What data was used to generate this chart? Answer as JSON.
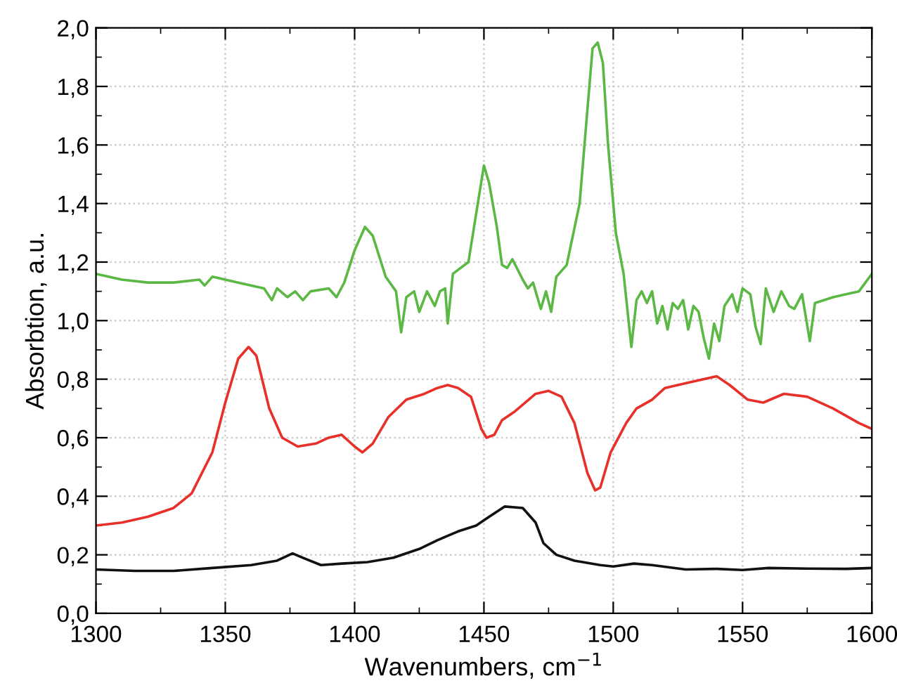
{
  "chart_data": {
    "type": "line",
    "xlabel": "Wavenumbers, cm$^{−1}$",
    "ylabel": "Absorbtion, a.u.",
    "xlim": [
      1300,
      1600
    ],
    "xticks": [
      1300,
      1350,
      1400,
      1450,
      1500,
      1550,
      1600
    ],
    "ylim": [
      0,
      2.0
    ],
    "yticks": [
      {
        "value": 0,
        "label": "0,0"
      },
      {
        "value": 0.2,
        "label": "0,2"
      },
      {
        "value": 0.4,
        "label": "0,4"
      },
      {
        "value": 0.6,
        "label": "0,6"
      },
      {
        "value": 0.8,
        "label": "0,8"
      },
      {
        "value": 1.0,
        "label": "1,0"
      },
      {
        "value": 1.2,
        "label": "1,2"
      },
      {
        "value": 1.4,
        "label": "1,4"
      },
      {
        "value": 1.6,
        "label": "1,6"
      },
      {
        "value": 1.8,
        "label": "1,8"
      },
      {
        "value": 2.0,
        "label": "2,0"
      }
    ],
    "grid": true,
    "marker": "none",
    "line_style": "solid",
    "series": [
      {
        "color": "#5cb845",
        "x": [
          1300,
          1310,
          1320,
          1330,
          1340,
          1342,
          1345,
          1355,
          1365,
          1368,
          1370,
          1374,
          1377,
          1380,
          1383,
          1390,
          1393,
          1396,
          1400,
          1404,
          1407,
          1412,
          1416,
          1418,
          1420,
          1423,
          1425,
          1428,
          1431,
          1433,
          1435,
          1436,
          1438,
          1444,
          1448,
          1450,
          1452,
          1455,
          1457,
          1459,
          1461,
          1465,
          1467,
          1469,
          1472,
          1474,
          1476,
          1478,
          1482,
          1487,
          1490,
          1492,
          1494,
          1496,
          1498,
          1501,
          1504,
          1507,
          1509,
          1511,
          1513,
          1515,
          1517,
          1519,
          1521,
          1523,
          1525,
          1527,
          1529,
          1531,
          1533,
          1535,
          1537,
          1539,
          1541,
          1543,
          1546,
          1548,
          1550,
          1553,
          1555,
          1557,
          1559,
          1562,
          1565,
          1568,
          1570,
          1573,
          1576,
          1578,
          1585,
          1590,
          1595,
          1600
        ],
        "values": [
          1.16,
          1.14,
          1.13,
          1.13,
          1.14,
          1.12,
          1.15,
          1.13,
          1.11,
          1.07,
          1.11,
          1.08,
          1.1,
          1.07,
          1.1,
          1.11,
          1.08,
          1.13,
          1.24,
          1.32,
          1.29,
          1.15,
          1.1,
          0.96,
          1.08,
          1.1,
          1.03,
          1.1,
          1.05,
          1.1,
          1.11,
          0.99,
          1.16,
          1.2,
          1.42,
          1.53,
          1.47,
          1.32,
          1.19,
          1.18,
          1.21,
          1.14,
          1.11,
          1.13,
          1.04,
          1.1,
          1.03,
          1.15,
          1.19,
          1.4,
          1.72,
          1.93,
          1.95,
          1.88,
          1.6,
          1.3,
          1.16,
          0.91,
          1.07,
          1.1,
          1.06,
          1.1,
          0.99,
          1.05,
          0.97,
          1.06,
          1.04,
          1.07,
          0.97,
          1.05,
          1.03,
          0.94,
          0.87,
          0.99,
          0.93,
          1.05,
          1.09,
          1.03,
          1.11,
          1.09,
          0.98,
          0.92,
          1.11,
          1.03,
          1.1,
          1.05,
          1.04,
          1.09,
          0.93,
          1.06,
          1.08,
          1.09,
          1.1,
          1.16
        ]
      },
      {
        "color": "#e8302a",
        "x": [
          1300,
          1310,
          1320,
          1330,
          1337,
          1345,
          1350,
          1355,
          1359,
          1362,
          1367,
          1372,
          1378,
          1385,
          1390,
          1395,
          1400,
          1403,
          1407,
          1413,
          1420,
          1427,
          1432,
          1436,
          1440,
          1445,
          1449,
          1451,
          1454,
          1457,
          1462,
          1470,
          1475,
          1480,
          1485,
          1490,
          1493,
          1495,
          1499,
          1505,
          1509,
          1515,
          1520,
          1530,
          1540,
          1545,
          1552,
          1558,
          1566,
          1575,
          1585,
          1595,
          1600
        ],
        "values": [
          0.3,
          0.31,
          0.33,
          0.36,
          0.41,
          0.55,
          0.72,
          0.87,
          0.91,
          0.88,
          0.7,
          0.6,
          0.57,
          0.58,
          0.6,
          0.61,
          0.57,
          0.55,
          0.58,
          0.67,
          0.73,
          0.75,
          0.77,
          0.78,
          0.77,
          0.74,
          0.63,
          0.6,
          0.61,
          0.66,
          0.69,
          0.75,
          0.76,
          0.74,
          0.65,
          0.48,
          0.42,
          0.43,
          0.55,
          0.65,
          0.7,
          0.73,
          0.77,
          0.79,
          0.81,
          0.78,
          0.73,
          0.72,
          0.75,
          0.74,
          0.7,
          0.65,
          0.63
        ]
      },
      {
        "color": "#111111",
        "x": [
          1300,
          1315,
          1330,
          1345,
          1360,
          1370,
          1376,
          1380,
          1387,
          1395,
          1405,
          1415,
          1425,
          1432,
          1440,
          1447,
          1452,
          1458,
          1465,
          1470,
          1473,
          1478,
          1485,
          1495,
          1500,
          1508,
          1515,
          1528,
          1540,
          1550,
          1560,
          1575,
          1590,
          1600
        ],
        "values": [
          0.15,
          0.145,
          0.145,
          0.155,
          0.165,
          0.18,
          0.205,
          0.19,
          0.165,
          0.17,
          0.175,
          0.19,
          0.22,
          0.25,
          0.28,
          0.3,
          0.33,
          0.365,
          0.36,
          0.31,
          0.24,
          0.2,
          0.18,
          0.165,
          0.16,
          0.17,
          0.165,
          0.15,
          0.152,
          0.148,
          0.155,
          0.153,
          0.152,
          0.155
        ]
      }
    ]
  }
}
